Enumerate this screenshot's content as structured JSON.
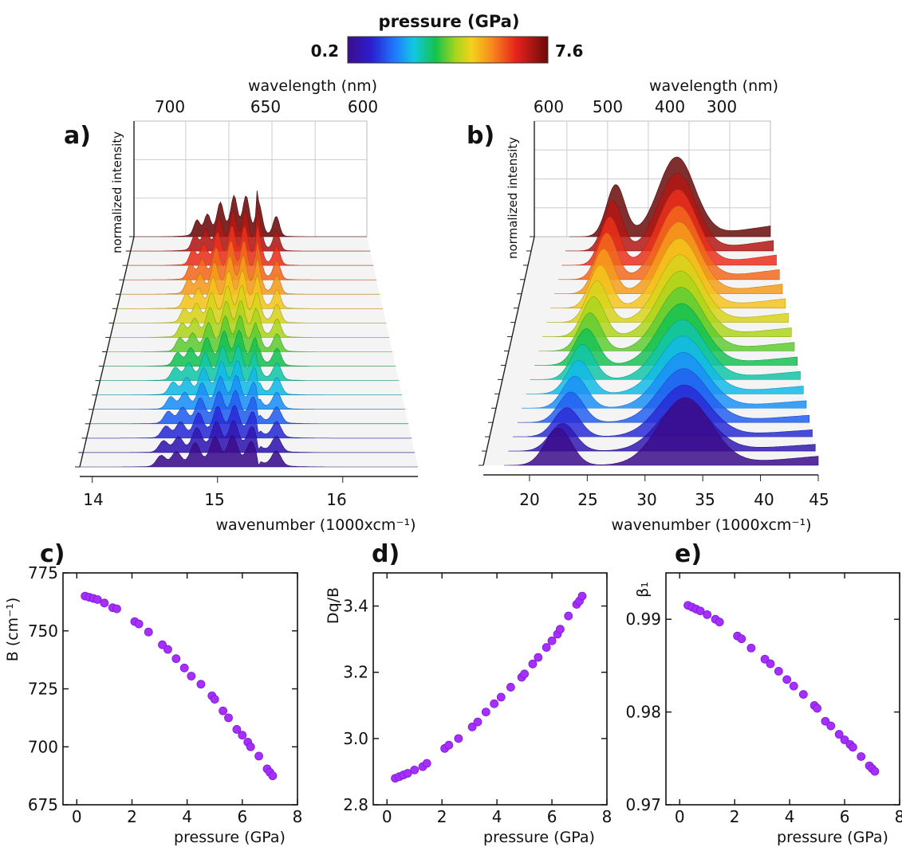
{
  "colorbar": {
    "title": "pressure (GPa)",
    "min_label": "0.2",
    "max_label": "7.6"
  },
  "panel_a": {
    "label": "a)",
    "top_axis_title": "wavelength (nm)",
    "top_ticks": [
      "700",
      "650",
      "600"
    ],
    "z_axis_label": "normalized intensity",
    "bottom_ticks": [
      "14",
      "15",
      "16"
    ],
    "x_axis_title": "wavenumber (1000xcm⁻¹)"
  },
  "panel_b": {
    "label": "b)",
    "top_axis_title": "wavelength (nm)",
    "top_ticks": [
      "600",
      "500",
      "400",
      "300"
    ],
    "z_axis_label": "normalized intensity",
    "bottom_ticks": [
      "20",
      "25",
      "30",
      "35",
      "40",
      "45"
    ],
    "x_axis_title": "wavenumber (1000xcm⁻¹)"
  },
  "panel_c": {
    "label": "c)",
    "ylabel": "B (cm⁻¹)",
    "xlabel": "pressure (GPa)",
    "yticks": [
      "675",
      "700",
      "725",
      "750",
      "775"
    ],
    "xticks": [
      "0",
      "2",
      "4",
      "6",
      "8"
    ]
  },
  "panel_d": {
    "label": "d)",
    "ylabel": "Dq/B",
    "xlabel": "pressure (GPa)",
    "yticks": [
      "2.8",
      "3.0",
      "3.2",
      "3.4"
    ],
    "xticks": [
      "0",
      "2",
      "4",
      "6",
      "8"
    ]
  },
  "panel_e": {
    "label": "e)",
    "ylabel": "β₁",
    "xlabel": "pressure (GPa)",
    "yticks": [
      "0.97",
      "0.98",
      "0.99"
    ],
    "xticks": [
      "0",
      "2",
      "4",
      "6",
      "8"
    ]
  },
  "chart_data": [
    {
      "type": "area",
      "panel": "a",
      "xlabel": "wavenumber (1000xcm⁻¹)",
      "xlim": [
        13.9,
        16.6
      ],
      "n_spectra": 17,
      "pressure_range_GPa": [
        0.2,
        7.6
      ],
      "peaks_1000cm": [
        14.55,
        14.67,
        14.82,
        14.98,
        15.12,
        15.27,
        15.47
      ],
      "sharp_line_1000cm": 15.33,
      "colormap": [
        "#3b0d8c",
        "#2a1fd0",
        "#1f7dff",
        "#10c8e0",
        "#16c24a",
        "#a8d51c",
        "#f4d21c",
        "#f7891c",
        "#e8231c",
        "#6a0a0a"
      ]
    },
    {
      "type": "area",
      "panel": "b",
      "xlabel": "wavenumber (1000xcm⁻¹)",
      "xlim": [
        16,
        45
      ],
      "n_spectra": 17,
      "pressure_range_GPa": [
        0.2,
        7.6
      ],
      "band_centers_1000cm": [
        22.5,
        33.5
      ]
    },
    {
      "type": "scatter",
      "panel": "c",
      "xlabel": "pressure (GPa)",
      "ylabel": "B (cm⁻¹)",
      "xlim": [
        -0.5,
        8
      ],
      "ylim": [
        675,
        775
      ],
      "x": [
        0.3,
        0.45,
        0.6,
        0.75,
        1.0,
        1.3,
        1.45,
        2.1,
        2.25,
        2.6,
        3.1,
        3.3,
        3.6,
        3.9,
        4.15,
        4.5,
        4.9,
        5.0,
        5.3,
        5.5,
        5.8,
        6.0,
        6.2,
        6.3,
        6.6,
        6.9,
        7.0,
        7.1
      ],
      "y": [
        765,
        764.5,
        764,
        763.5,
        762,
        760,
        759.5,
        754,
        753,
        749.5,
        744,
        742,
        738,
        734,
        730.5,
        727,
        722,
        720.5,
        715.5,
        712.5,
        707.5,
        705,
        702,
        700,
        696,
        690.5,
        689,
        687.5
      ],
      "marker_color": "#a62fff"
    },
    {
      "type": "scatter",
      "panel": "d",
      "xlabel": "pressure (GPa)",
      "ylabel": "Dq/B",
      "xlim": [
        -0.5,
        8
      ],
      "ylim": [
        2.8,
        3.5
      ],
      "x": [
        0.3,
        0.45,
        0.6,
        0.75,
        1.0,
        1.3,
        1.45,
        2.1,
        2.25,
        2.6,
        3.1,
        3.3,
        3.6,
        3.9,
        4.15,
        4.5,
        4.9,
        5.0,
        5.3,
        5.5,
        5.8,
        6.0,
        6.2,
        6.3,
        6.6,
        6.9,
        7.0,
        7.1
      ],
      "y": [
        2.88,
        2.885,
        2.89,
        2.895,
        2.905,
        2.915,
        2.925,
        2.97,
        2.98,
        3.0,
        3.035,
        3.05,
        3.08,
        3.105,
        3.125,
        3.155,
        3.185,
        3.195,
        3.225,
        3.245,
        3.275,
        3.295,
        3.315,
        3.33,
        3.37,
        3.405,
        3.415,
        3.43
      ],
      "marker_color": "#a62fff"
    },
    {
      "type": "scatter",
      "panel": "e",
      "xlabel": "pressure (GPa)",
      "ylabel": "β₁",
      "xlim": [
        -0.5,
        8
      ],
      "ylim": [
        0.97,
        0.995
      ],
      "x": [
        0.3,
        0.45,
        0.6,
        0.75,
        1.0,
        1.3,
        1.45,
        2.1,
        2.25,
        2.6,
        3.1,
        3.3,
        3.6,
        3.9,
        4.15,
        4.5,
        4.9,
        5.0,
        5.3,
        5.5,
        5.8,
        6.0,
        6.2,
        6.3,
        6.6,
        6.9,
        7.0,
        7.1
      ],
      "y": [
        0.9915,
        0.9913,
        0.9911,
        0.9909,
        0.9905,
        0.99,
        0.9897,
        0.9882,
        0.9879,
        0.9869,
        0.9857,
        0.9852,
        0.9844,
        0.9835,
        0.9828,
        0.9819,
        0.9807,
        0.9804,
        0.979,
        0.9785,
        0.9776,
        0.977,
        0.9765,
        0.9762,
        0.9752,
        0.9742,
        0.9739,
        0.9736
      ],
      "marker_color": "#a62fff"
    }
  ]
}
